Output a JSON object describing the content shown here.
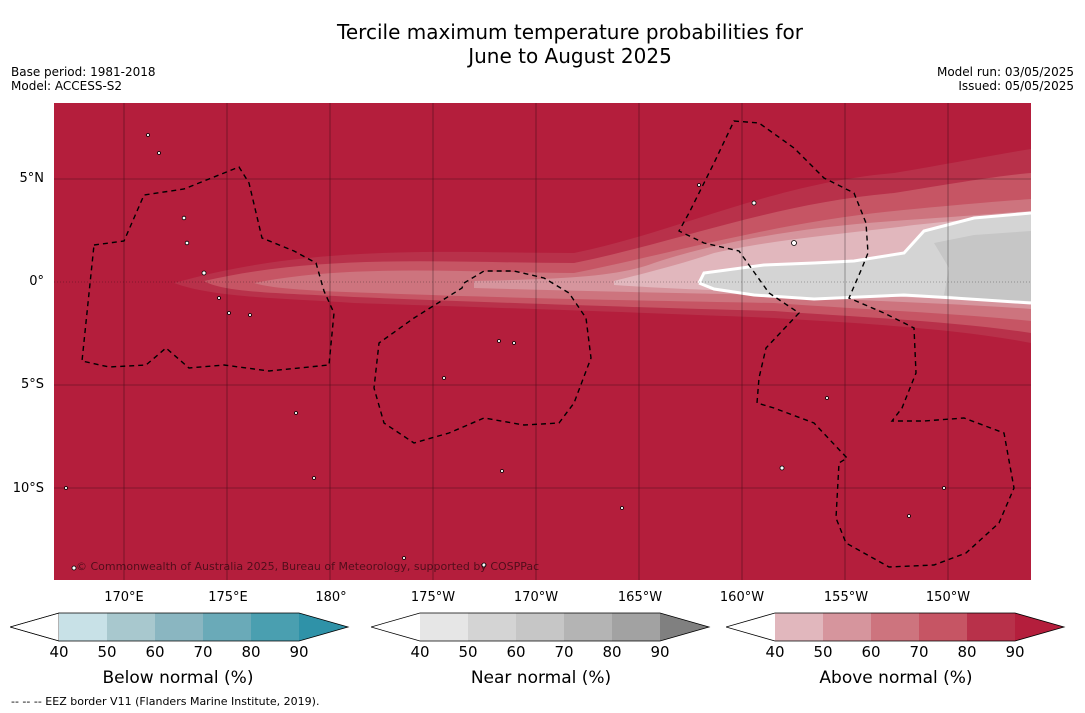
{
  "title_line1": "Tercile maximum temperature probabilities for",
  "title_line2": "June to August 2025",
  "meta_left": {
    "base_period": "Base period: 1981-2018",
    "model": "Model: ACCESS-S2"
  },
  "meta_right": {
    "model_run": "Model run: 03/05/2025",
    "issued": "Issued: 05/05/2025"
  },
  "copyright": "© Commonwealth of Australia 2025, Bureau of Meteorology, supported by COSPPac",
  "footer": "--  --  -- EEZ border V11 (Flanders Marine Institute, 2019).",
  "lat_labels": [
    "5°N",
    "0°",
    "5°S",
    "10°S"
  ],
  "lon_labels": [
    "170°E",
    "175°E",
    "180°",
    "175°W",
    "170°W",
    "165°W",
    "160°W",
    "155°W",
    "150°W"
  ],
  "colors": {
    "above_90": "#b41e3c",
    "land": "#ffffff",
    "grid": "#000000"
  },
  "colorbars": [
    {
      "title": "Below normal (%)",
      "ticks": [
        "40",
        "50",
        "60",
        "70",
        "80",
        "90"
      ],
      "colors": [
        "#ffffff",
        "#c8e1e7",
        "#a8c8ce",
        "#8ab6c1",
        "#6aaab8",
        "#4a9fb0",
        "#2f92a8"
      ]
    },
    {
      "title": "Near normal (%)",
      "ticks": [
        "40",
        "50",
        "60",
        "70",
        "80",
        "90"
      ],
      "colors": [
        "#ffffff",
        "#e6e6e6",
        "#d4d4d4",
        "#c6c6c6",
        "#b4b4b4",
        "#a2a2a2",
        "#808080"
      ]
    },
    {
      "title": "Above normal (%)",
      "ticks": [
        "40",
        "50",
        "60",
        "70",
        "80",
        "90"
      ],
      "colors": [
        "#ffffff",
        "#e1b7bd",
        "#d6959d",
        "#cd747e",
        "#c65564",
        "#b8314a",
        "#b41e3c"
      ]
    }
  ]
}
